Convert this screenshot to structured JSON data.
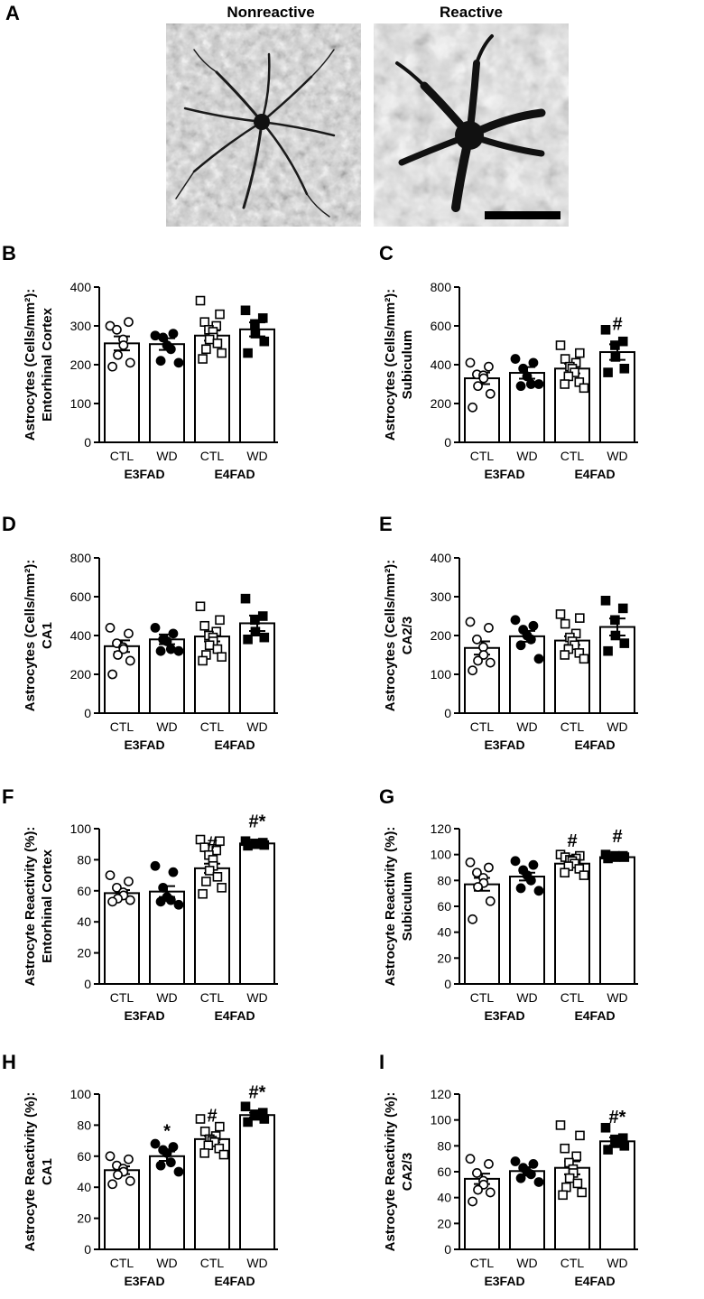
{
  "figure": {
    "panel_a": {
      "letter": "A",
      "titles": [
        "Nonreactive",
        "Reactive"
      ]
    }
  },
  "chart_data": [
    {
      "panel": "B",
      "type": "bar",
      "ylabel_lines": [
        "Astrocytes (Cells/mm²):",
        "Entorhinal Cortex"
      ],
      "categories": [
        "CTL",
        "WD",
        "CTL",
        "WD"
      ],
      "groups": [
        {
          "label": "E3FAD",
          "span": [
            0,
            1
          ]
        },
        {
          "label": "E4FAD",
          "span": [
            2,
            3
          ]
        }
      ],
      "ylim": [
        0,
        400
      ],
      "yticks": [
        0,
        100,
        200,
        300,
        400
      ],
      "values": [
        255,
        253,
        275,
        291
      ],
      "sem": [
        18,
        15,
        13,
        18
      ],
      "points": [
        [
          300,
          310,
          290,
          265,
          250,
          225,
          205,
          195
        ],
        [
          275,
          280,
          270,
          250,
          240,
          210,
          205
        ],
        [
          365,
          330,
          310,
          300,
          290,
          285,
          270,
          265,
          255,
          240,
          230,
          215
        ],
        [
          340,
          320,
          305,
          280,
          260,
          230
        ]
      ],
      "markers": [
        "open-circle",
        "filled-circle",
        "open-square",
        "filled-square"
      ],
      "annotations": [
        "",
        "",
        "",
        ""
      ]
    },
    {
      "panel": "C",
      "type": "bar",
      "ylabel_lines": [
        "Astrocytes (Cells/mm²):",
        "Subiculum"
      ],
      "categories": [
        "CTL",
        "WD",
        "CTL",
        "WD"
      ],
      "groups": [
        {
          "label": "E3FAD",
          "span": [
            0,
            1
          ]
        },
        {
          "label": "E4FAD",
          "span": [
            2,
            3
          ]
        }
      ],
      "ylim": [
        0,
        800
      ],
      "yticks": [
        0,
        200,
        400,
        600,
        800
      ],
      "values": [
        330,
        358,
        380,
        465
      ],
      "sem": [
        30,
        30,
        25,
        40
      ],
      "points": [
        [
          410,
          390,
          350,
          345,
          330,
          290,
          250,
          180
        ],
        [
          430,
          410,
          380,
          340,
          300,
          290,
          300
        ],
        [
          500,
          460,
          430,
          410,
          390,
          380,
          360,
          340,
          310,
          300,
          280
        ],
        [
          580,
          520,
          500,
          440,
          380,
          360
        ]
      ],
      "markers": [
        "open-circle",
        "filled-circle",
        "open-square",
        "filled-square"
      ],
      "annotations": [
        "",
        "",
        "",
        "#"
      ]
    },
    {
      "panel": "D",
      "type": "bar",
      "ylabel_lines": [
        "Astrocytes (Cells/mm²):",
        "CA1"
      ],
      "categories": [
        "CTL",
        "WD",
        "CTL",
        "WD"
      ],
      "groups": [
        {
          "label": "E3FAD",
          "span": [
            0,
            1
          ]
        },
        {
          "label": "E4FAD",
          "span": [
            2,
            3
          ]
        }
      ],
      "ylim": [
        0,
        800
      ],
      "yticks": [
        0,
        200,
        400,
        600,
        800
      ],
      "values": [
        345,
        380,
        395,
        463
      ],
      "sem": [
        30,
        25,
        25,
        40
      ],
      "points": [
        [
          440,
          410,
          360,
          340,
          330,
          300,
          270,
          200
        ],
        [
          440,
          410,
          380,
          370,
          330,
          320,
          320
        ],
        [
          550,
          480,
          450,
          420,
          400,
          390,
          370,
          350,
          330,
          300,
          290,
          270
        ],
        [
          590,
          500,
          480,
          420,
          390,
          380
        ]
      ],
      "markers": [
        "open-circle",
        "filled-circle",
        "open-square",
        "filled-square"
      ],
      "annotations": [
        "",
        "",
        "",
        ""
      ]
    },
    {
      "panel": "E",
      "type": "bar",
      "ylabel_lines": [
        "Astrocytes (Cells/mm²):",
        "CA2/3"
      ],
      "categories": [
        "CTL",
        "WD",
        "CTL",
        "WD"
      ],
      "groups": [
        {
          "label": "E3FAD",
          "span": [
            0,
            1
          ]
        },
        {
          "label": "E4FAD",
          "span": [
            2,
            3
          ]
        }
      ],
      "ylim": [
        0,
        400
      ],
      "yticks": [
        0,
        100,
        200,
        300,
        400
      ],
      "values": [
        168,
        198,
        187,
        222
      ],
      "sem": [
        17,
        14,
        11,
        22
      ],
      "points": [
        [
          235,
          220,
          190,
          170,
          150,
          135,
          130,
          110
        ],
        [
          240,
          225,
          215,
          200,
          190,
          175,
          140
        ],
        [
          255,
          245,
          230,
          205,
          195,
          185,
          175,
          165,
          155,
          150,
          140
        ],
        [
          290,
          270,
          240,
          200,
          180,
          160
        ]
      ],
      "markers": [
        "open-circle",
        "filled-circle",
        "open-square",
        "filled-square"
      ],
      "annotations": [
        "",
        "",
        "",
        ""
      ]
    },
    {
      "panel": "F",
      "type": "bar",
      "ylabel_lines": [
        "Astrocyte Reactivity (%):",
        "Entorhinal Cortex"
      ],
      "categories": [
        "CTL",
        "WD",
        "CTL",
        "WD"
      ],
      "groups": [
        {
          "label": "E3FAD",
          "span": [
            0,
            1
          ]
        },
        {
          "label": "E4FAD",
          "span": [
            2,
            3
          ]
        }
      ],
      "ylim": [
        0,
        100
      ],
      "yticks": [
        0,
        20,
        40,
        60,
        80,
        100
      ],
      "values": [
        58.5,
        59.5,
        74.5,
        90.5
      ],
      "sem": [
        2,
        3.5,
        3,
        1
      ],
      "points": [
        [
          70,
          66,
          62,
          59,
          57,
          55,
          54,
          53
        ],
        [
          76,
          72,
          62,
          56,
          54,
          53,
          51
        ],
        [
          93,
          92,
          88,
          86,
          83,
          80,
          76,
          73,
          69,
          66,
          62,
          58
        ],
        [
          92,
          91,
          90.5,
          90,
          89.5,
          89
        ]
      ],
      "markers": [
        "open-circle",
        "filled-circle",
        "open-square",
        "filled-square"
      ],
      "annotations": [
        "",
        "",
        "#",
        "#*"
      ]
    },
    {
      "panel": "G",
      "type": "bar",
      "ylabel_lines": [
        "Astrocyte Reactivity (%):",
        "Subiculum"
      ],
      "categories": [
        "CTL",
        "WD",
        "CTL",
        "WD"
      ],
      "groups": [
        {
          "label": "E3FAD",
          "span": [
            0,
            1
          ]
        },
        {
          "label": "E4FAD",
          "span": [
            2,
            3
          ]
        }
      ],
      "ylim": [
        0,
        120
      ],
      "yticks": [
        0,
        20,
        40,
        60,
        80,
        100,
        120
      ],
      "values": [
        77,
        83,
        93,
        98
      ],
      "sem": [
        5,
        3,
        2,
        0.5
      ],
      "points": [
        [
          94,
          90,
          86,
          82,
          78,
          75,
          64,
          50
        ],
        [
          95,
          92,
          88,
          84,
          80,
          74,
          72
        ],
        [
          100,
          99,
          98,
          97,
          96,
          95,
          93,
          91,
          89,
          86,
          84
        ],
        [
          100,
          99,
          99,
          98,
          98,
          97
        ]
      ],
      "markers": [
        "open-circle",
        "filled-circle",
        "open-square",
        "filled-square"
      ],
      "annotations": [
        "",
        "",
        "#",
        "#"
      ]
    },
    {
      "panel": "H",
      "type": "bar",
      "ylabel_lines": [
        "Astrocyte Reactivity (%):",
        "CA1"
      ],
      "categories": [
        "CTL",
        "WD",
        "CTL",
        "WD"
      ],
      "groups": [
        {
          "label": "E3FAD",
          "span": [
            0,
            1
          ]
        },
        {
          "label": "E4FAD",
          "span": [
            2,
            3
          ]
        }
      ],
      "ylim": [
        0,
        100
      ],
      "yticks": [
        0,
        20,
        40,
        60,
        80,
        100
      ],
      "values": [
        51,
        60,
        71,
        86.5
      ],
      "sem": [
        2.5,
        3,
        2,
        1.5
      ],
      "points": [
        [
          60,
          58,
          54,
          52,
          50,
          48,
          44,
          42
        ],
        [
          68,
          66,
          64,
          62,
          56,
          54,
          50
        ],
        [
          84,
          79,
          76,
          73,
          71,
          70,
          69,
          67,
          65,
          62,
          61
        ],
        [
          92,
          88,
          87,
          86,
          84,
          82
        ]
      ],
      "markers": [
        "open-circle",
        "filled-circle",
        "open-square",
        "filled-square"
      ],
      "annotations": [
        "",
        "*",
        "#",
        "#*"
      ]
    },
    {
      "panel": "I",
      "type": "bar",
      "ylabel_lines": [
        "Astrocyte Reactivity (%):",
        "CA2/3"
      ],
      "categories": [
        "CTL",
        "WD",
        "CTL",
        "WD"
      ],
      "groups": [
        {
          "label": "E3FAD",
          "span": [
            0,
            1
          ]
        },
        {
          "label": "E4FAD",
          "span": [
            2,
            3
          ]
        }
      ],
      "ylim": [
        0,
        120
      ],
      "yticks": [
        0,
        20,
        40,
        60,
        80,
        100,
        120
      ],
      "values": [
        54.5,
        60.5,
        63,
        83.5
      ],
      "sem": [
        4,
        3,
        5,
        3
      ],
      "points": [
        [
          70,
          66,
          59,
          53,
          50,
          46,
          44,
          37
        ],
        [
          68,
          66,
          63,
          60,
          58,
          55,
          52
        ],
        [
          96,
          88,
          78,
          72,
          67,
          62,
          59,
          55,
          51,
          48,
          44,
          42
        ],
        [
          94,
          86,
          85,
          82,
          80,
          77
        ]
      ],
      "markers": [
        "open-circle",
        "filled-circle",
        "open-square",
        "filled-square"
      ],
      "annotations": [
        "",
        "",
        "",
        "#*"
      ]
    }
  ]
}
